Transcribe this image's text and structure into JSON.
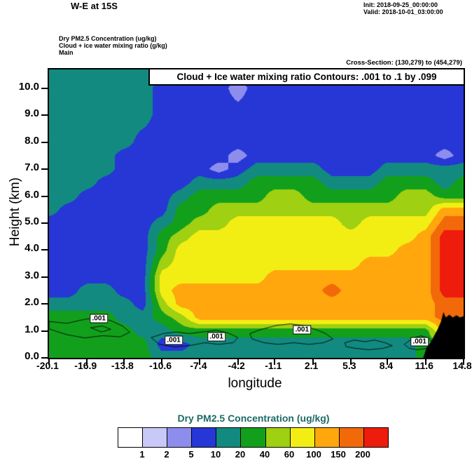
{
  "header": {
    "title": "W-E at 15S",
    "init": "Init: 2018-09-25_00:00:00",
    "valid": "Valid: 2018-10-01_03:00:00",
    "field1": "Dry PM2.5 Concentration   (ug/kg)",
    "field2": "Cloud + ice water mixing ratio   (g/kg)",
    "field3": "Main",
    "cross_section": "Cross-Section: (130,279) to (454,279)"
  },
  "plot": {
    "legend": "Cloud + Ice water mixing ratio Contours: .001 to .1 by .099",
    "xlabel": "longitude",
    "ylabel": "Height (km)",
    "x_ticks": [
      "-20.1",
      "-16.9",
      "-13.8",
      "-10.6",
      "-7.4",
      "-4.2",
      "-1.1",
      "2.1",
      "5.3",
      "8.4",
      "11.6",
      "14.8"
    ],
    "y_ticks": [
      "0.0",
      "1.0",
      "2.0",
      "3.0",
      "4.0",
      "5.0",
      "6.0",
      "7.0",
      "8.0",
      "9.0",
      "10.0"
    ]
  },
  "colorbar": {
    "title": "Dry PM2.5 Concentration  (ug/kg)",
    "title_color": "#1d6b66",
    "boundary_labels": [
      "1",
      "2",
      "5",
      "10",
      "20",
      "40",
      "60",
      "100",
      "150",
      "200"
    ]
  },
  "chart_data": {
    "type": "heatmap",
    "title": "W-E at 15S",
    "xlabel": "longitude",
    "ylabel": "Height (km)",
    "units": "ug/kg",
    "x_range": [
      -20.1,
      14.8
    ],
    "y_range": [
      0,
      10.7
    ],
    "level_boundaries": [
      1,
      2,
      5,
      10,
      20,
      40,
      60,
      100,
      150,
      200
    ],
    "level_colors": [
      "#ffffff",
      "#c9c9f7",
      "#8d8dee",
      "#2737d6",
      "#128a80",
      "#12a01c",
      "#9fd011",
      "#f2ee14",
      "#ffa70c",
      "#f2690a",
      "#ee1c0c"
    ],
    "levels_note": "levels[xi][yi] = concentration bin index (0 = <1 ug/kg ... 10 = >200 ug/kg); yi runs bottom (0 km) to top (10.7 km)",
    "x": [
      -20.1,
      -18.4,
      -16.9,
      -15.3,
      -13.8,
      -12.2,
      -10.6,
      -9.0,
      -7.4,
      -5.8,
      -4.2,
      -2.6,
      -1.1,
      0.5,
      2.1,
      3.7,
      5.3,
      6.9,
      8.4,
      10.0,
      11.6,
      13.2,
      14.8
    ],
    "y": [
      0,
      0.5,
      1,
      1.5,
      2,
      2.5,
      3,
      3.5,
      4,
      4.5,
      5,
      5.5,
      6,
      6.5,
      7,
      7.5,
      8,
      9,
      10,
      10.7
    ],
    "levels": [
      [
        5,
        5,
        5,
        5,
        4,
        3,
        3,
        3,
        3,
        3,
        3,
        4,
        4,
        4,
        4,
        4,
        4,
        4,
        4,
        4
      ],
      [
        5,
        5,
        5,
        5,
        4,
        3,
        3,
        3,
        3,
        3,
        3,
        3,
        4,
        4,
        4,
        4,
        4,
        4,
        4,
        4
      ],
      [
        5,
        5,
        5,
        5,
        4,
        4,
        3,
        3,
        3,
        3,
        3,
        3,
        3,
        4,
        4,
        4,
        4,
        4,
        4,
        4
      ],
      [
        5,
        5,
        5,
        5,
        4,
        4,
        3,
        3,
        3,
        3,
        3,
        3,
        3,
        3,
        4,
        4,
        4,
        4,
        4,
        4
      ],
      [
        5,
        5,
        5,
        4,
        4,
        3,
        3,
        3,
        3,
        3,
        3,
        3,
        3,
        3,
        3,
        3,
        4,
        4,
        4,
        4
      ],
      [
        5,
        5,
        4,
        4,
        3,
        3,
        3,
        3,
        3,
        3,
        3,
        3,
        3,
        3,
        3,
        3,
        3,
        4,
        4,
        4
      ],
      [
        4,
        3,
        4,
        5,
        6,
        7,
        7,
        6,
        5,
        5,
        4,
        3,
        3,
        3,
        3,
        3,
        3,
        3,
        3,
        4
      ],
      [
        4,
        3,
        5,
        6,
        8,
        8,
        7,
        7,
        7,
        6,
        5,
        5,
        4,
        3,
        3,
        3,
        3,
        3,
        3,
        3
      ],
      [
        4,
        4,
        5,
        8,
        8,
        8,
        7,
        7,
        7,
        7,
        6,
        5,
        5,
        4,
        3,
        3,
        3,
        3,
        3,
        3
      ],
      [
        4,
        4,
        5,
        8,
        8,
        8,
        7,
        7,
        7,
        7,
        6,
        6,
        5,
        4,
        2,
        3,
        3,
        3,
        3,
        3
      ],
      [
        4,
        4,
        5,
        8,
        8,
        8,
        7,
        7,
        7,
        7,
        7,
        6,
        5,
        4,
        3,
        2,
        3,
        3,
        2,
        3
      ],
      [
        4,
        4,
        5,
        8,
        8,
        8,
        7,
        7,
        7,
        7,
        7,
        6,
        5,
        5,
        4,
        3,
        3,
        3,
        3,
        3
      ],
      [
        4,
        4,
        5,
        8,
        8,
        8,
        8,
        7,
        7,
        7,
        7,
        6,
        6,
        5,
        4,
        3,
        3,
        3,
        3,
        3
      ],
      [
        4,
        4,
        5,
        8,
        8,
        8,
        8,
        7,
        7,
        7,
        7,
        6,
        6,
        5,
        4,
        3,
        3,
        3,
        3,
        3
      ],
      [
        4,
        4,
        5,
        8,
        8,
        8,
        8,
        7,
        7,
        7,
        7,
        6,
        5,
        5,
        4,
        3,
        3,
        3,
        3,
        3
      ],
      [
        4,
        4,
        5,
        8,
        8,
        9,
        8,
        7,
        7,
        7,
        7,
        6,
        5,
        4,
        3,
        3,
        3,
        3,
        3,
        3
      ],
      [
        4,
        4,
        5,
        8,
        8,
        8,
        8,
        7,
        7,
        7,
        6,
        6,
        5,
        4,
        3,
        3,
        3,
        3,
        3,
        3
      ],
      [
        4,
        4,
        5,
        8,
        8,
        8,
        8,
        8,
        7,
        7,
        7,
        6,
        5,
        4,
        3,
        3,
        3,
        3,
        3,
        3
      ],
      [
        4,
        4,
        5,
        8,
        8,
        8,
        8,
        8,
        7,
        7,
        7,
        6,
        5,
        5,
        4,
        3,
        3,
        3,
        3,
        3
      ],
      [
        4,
        4,
        5,
        8,
        8,
        8,
        8,
        8,
        8,
        7,
        7,
        6,
        6,
        5,
        4,
        3,
        3,
        3,
        3,
        3
      ],
      [
        5,
        5,
        5,
        8,
        8,
        8,
        8,
        8,
        8,
        8,
        7,
        6,
        6,
        5,
        4,
        3,
        3,
        3,
        3,
        3
      ],
      [
        5,
        5,
        8,
        9,
        9,
        10,
        10,
        10,
        10,
        10,
        9,
        8,
        5,
        4,
        4,
        2,
        3,
        3,
        3,
        3
      ],
      [
        5,
        5,
        8,
        9,
        9,
        10,
        10,
        10,
        10,
        10,
        9,
        8,
        5,
        5,
        4,
        3,
        3,
        3,
        3,
        3
      ]
    ],
    "terrain": [
      [
        11.4,
        0
      ],
      [
        11.7,
        0.4
      ],
      [
        12.0,
        0.55
      ],
      [
        12.3,
        0.8
      ],
      [
        12.6,
        1.05
      ],
      [
        12.9,
        1.35
      ],
      [
        13.1,
        1.7
      ],
      [
        13.3,
        1.5
      ],
      [
        13.6,
        1.6
      ],
      [
        13.9,
        1.5
      ],
      [
        14.2,
        1.58
      ],
      [
        14.5,
        1.5
      ],
      [
        14.8,
        1.55
      ],
      [
        14.8,
        0
      ]
    ],
    "cloud_contours": {
      "contour_values": [
        0.001,
        0.1
      ],
      "paths": [
        [
          [
            -20.1,
            1.35
          ],
          [
            -18.6,
            1.28
          ],
          [
            -17.2,
            1.42
          ],
          [
            -16.0,
            1.5
          ],
          [
            -14.9,
            1.38
          ],
          [
            -13.9,
            1.18
          ],
          [
            -13.3,
            0.95
          ],
          [
            -14.1,
            0.78
          ],
          [
            -15.6,
            0.82
          ],
          [
            -17.1,
            0.74
          ],
          [
            -18.6,
            0.86
          ],
          [
            -19.6,
            1.0
          ],
          [
            -20.1,
            1.08
          ]
        ],
        [
          [
            -11.5,
            0.75
          ],
          [
            -10.5,
            0.9
          ],
          [
            -9.4,
            0.96
          ],
          [
            -8.3,
            0.9
          ],
          [
            -7.2,
            0.96
          ],
          [
            -6.0,
            1.02
          ],
          [
            -5.0,
            0.92
          ],
          [
            -4.2,
            0.75
          ],
          [
            -4.6,
            0.56
          ],
          [
            -5.8,
            0.5
          ],
          [
            -7.0,
            0.56
          ],
          [
            -8.2,
            0.46
          ],
          [
            -9.5,
            0.4
          ],
          [
            -10.8,
            0.5
          ]
        ],
        [
          [
            -3.2,
            0.9
          ],
          [
            -2.2,
            1.06
          ],
          [
            -1.0,
            1.2
          ],
          [
            0.2,
            1.26
          ],
          [
            1.3,
            1.2
          ],
          [
            2.3,
            1.06
          ],
          [
            3.2,
            0.9
          ],
          [
            3.8,
            0.7
          ],
          [
            3.0,
            0.56
          ],
          [
            1.8,
            0.5
          ],
          [
            0.5,
            0.56
          ],
          [
            -0.8,
            0.5
          ],
          [
            -2.0,
            0.56
          ],
          [
            -3.0,
            0.7
          ]
        ],
        [
          [
            4.8,
            0.56
          ],
          [
            5.6,
            0.66
          ],
          [
            6.5,
            0.6
          ],
          [
            7.3,
            0.66
          ],
          [
            8.2,
            0.56
          ],
          [
            8.8,
            0.45
          ],
          [
            8.0,
            0.35
          ],
          [
            6.8,
            0.3
          ],
          [
            5.6,
            0.36
          ],
          [
            4.9,
            0.42
          ]
        ],
        [
          [
            9.8,
            0.5
          ],
          [
            10.5,
            0.72
          ],
          [
            11.2,
            0.82
          ],
          [
            11.9,
            0.72
          ],
          [
            12.3,
            0.5
          ],
          [
            11.8,
            0.36
          ],
          [
            10.9,
            0.3
          ],
          [
            10.2,
            0.36
          ]
        ],
        [
          [
            -16.6,
            1.12
          ],
          [
            -15.6,
            1.18
          ],
          [
            -14.9,
            1.06
          ],
          [
            -15.7,
            0.96
          ]
        ]
      ],
      "labels": [
        {
          "text": ".001",
          "lon": -15.9,
          "km": 1.45
        },
        {
          "text": ".001",
          "lon": -9.6,
          "km": 0.65
        },
        {
          "text": ".001",
          "lon": -6.0,
          "km": 0.78
        },
        {
          "text": ".001",
          "lon": 1.2,
          "km": 1.05
        },
        {
          "text": ".001",
          "lon": 11.1,
          "km": 0.6
        }
      ]
    }
  }
}
